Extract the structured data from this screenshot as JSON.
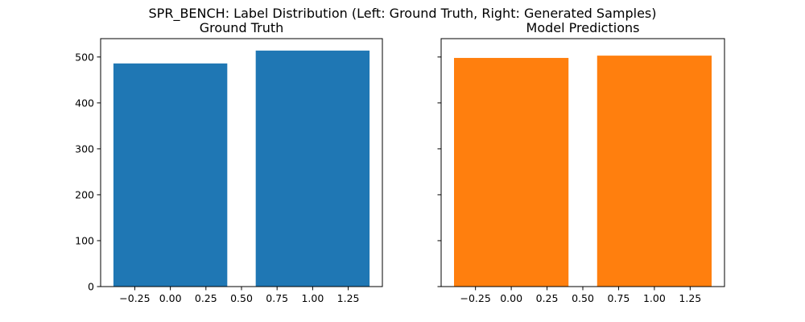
{
  "figure": {
    "suptitle": "SPR_BENCH: Label Distribution (Left: Ground Truth, Right: Generated Samples)"
  },
  "chart_data": [
    {
      "type": "bar",
      "title": "Ground Truth",
      "xlabel": "",
      "ylabel": "",
      "x": [
        0,
        1
      ],
      "values": [
        486,
        514
      ],
      "bar_width": 0.8,
      "color": "#1f77b4",
      "xlim": [
        -0.49,
        1.49
      ],
      "ylim": [
        0,
        540
      ],
      "xticks": [
        -0.25,
        0.0,
        0.25,
        0.5,
        0.75,
        1.0,
        1.25
      ],
      "xtick_labels": [
        "−0.25",
        "0.00",
        "0.25",
        "0.50",
        "0.75",
        "1.00",
        "1.25"
      ],
      "yticks": [
        0,
        100,
        200,
        300,
        400,
        500
      ],
      "ytick_labels": [
        "0",
        "100",
        "200",
        "300",
        "400",
        "500"
      ],
      "show_ytick_labels": true,
      "grid": false
    },
    {
      "type": "bar",
      "title": "Model Predictions",
      "xlabel": "",
      "ylabel": "",
      "x": [
        0,
        1
      ],
      "values": [
        498,
        503
      ],
      "bar_width": 0.8,
      "color": "#ff7f0e",
      "xlim": [
        -0.49,
        1.49
      ],
      "ylim": [
        0,
        540
      ],
      "xticks": [
        -0.25,
        0.0,
        0.25,
        0.5,
        0.75,
        1.0,
        1.25
      ],
      "xtick_labels": [
        "−0.25",
        "0.00",
        "0.25",
        "0.50",
        "0.75",
        "1.00",
        "1.25"
      ],
      "yticks": [
        0,
        100,
        200,
        300,
        400,
        500
      ],
      "ytick_labels": [],
      "show_ytick_labels": false,
      "grid": false
    }
  ]
}
